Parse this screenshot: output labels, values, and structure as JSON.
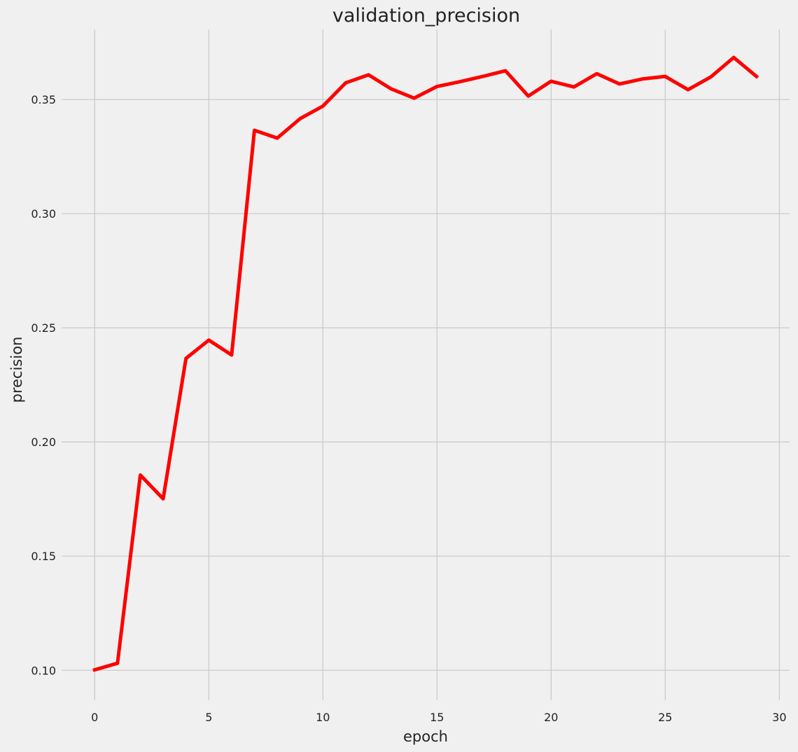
{
  "chart_data": {
    "type": "line",
    "title": "validation_precision",
    "xlabel": "epoch",
    "ylabel": "precision",
    "xlim": [
      -1.45,
      30.45
    ],
    "ylim": [
      0.0869,
      0.3807
    ],
    "xticks": [
      0,
      5,
      10,
      15,
      20,
      25,
      30
    ],
    "xtick_labels": [
      "0",
      "5",
      "10",
      "15",
      "20",
      "25",
      "30"
    ],
    "yticks": [
      0.1,
      0.15,
      0.2,
      0.25,
      0.3,
      0.35
    ],
    "ytick_labels": [
      "0.10",
      "0.15",
      "0.20",
      "0.25",
      "0.30",
      "0.35"
    ],
    "grid": true,
    "background_color": "#f0f0f0",
    "series": [
      {
        "color": "#ff0000",
        "x": [
          0,
          1,
          2,
          3,
          4,
          5,
          6,
          7,
          8,
          9,
          10,
          11,
          12,
          13,
          14,
          15,
          16,
          17,
          18,
          19,
          20,
          21,
          22,
          23,
          24,
          25,
          26,
          27,
          28,
          29
        ],
        "y": [
          0.1002,
          0.1031,
          0.1855,
          0.1751,
          0.2366,
          0.2446,
          0.2381,
          0.3365,
          0.3331,
          0.3416,
          0.3471,
          0.3573,
          0.3608,
          0.3546,
          0.3506,
          0.3557,
          0.3578,
          0.3601,
          0.3626,
          0.3515,
          0.358,
          0.3555,
          0.3613,
          0.3568,
          0.359,
          0.3601,
          0.3543,
          0.3599,
          0.3684,
          0.3601
        ]
      }
    ]
  }
}
